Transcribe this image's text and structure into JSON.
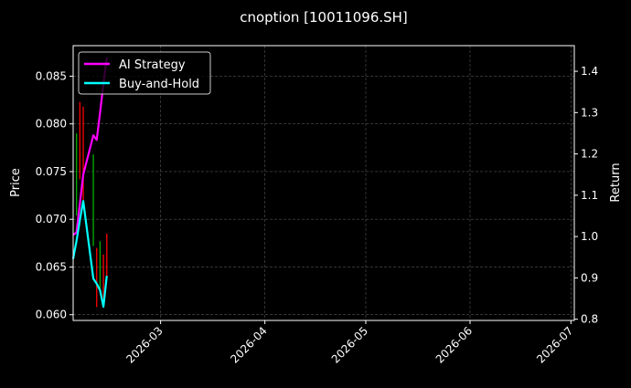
{
  "chart_data": {
    "type": "line",
    "title": "cnoption [10011096.SH]",
    "ylabel_left": "Price",
    "ylabel_right": "Return",
    "xlim": [
      "2026-02-03",
      "2026-07-02"
    ],
    "ylim_left": [
      0.0594,
      0.0882
    ],
    "ylim_right": [
      0.797,
      1.462
    ],
    "x_ticks": [
      "2026-03",
      "2026-04",
      "2026-05",
      "2026-06",
      "2026-07"
    ],
    "x_tick_dates": [
      "2026-03-01",
      "2026-04-01",
      "2026-05-01",
      "2026-06-01",
      "2026-07-01"
    ],
    "y_ticks_left": [
      "0.060",
      "0.065",
      "0.070",
      "0.075",
      "0.080",
      "0.085"
    ],
    "y_ticks_right": [
      "0.8",
      "0.9",
      "1.0",
      "1.1",
      "1.2",
      "1.3",
      "1.4"
    ],
    "grid": true,
    "legend_position": "top-left",
    "colors": {
      "ai": "#ff00ff",
      "bh": "#00ffff",
      "up": "#00b000",
      "down": "#ff0000",
      "grid": "#555555",
      "axes": "#ffffff"
    },
    "dates": [
      "2026-02-03",
      "2026-02-04",
      "2026-02-05",
      "2026-02-06",
      "2026-02-09",
      "2026-02-10",
      "2026-02-11",
      "2026-02-12",
      "2026-02-13"
    ],
    "series": [
      {
        "name": "AI Strategy",
        "axis": "right",
        "values": [
          1.004,
          1.01,
          1.08,
          1.15,
          1.245,
          1.234,
          1.3,
          1.37,
          1.433
        ]
      },
      {
        "name": "Buy-and-Hold",
        "axis": "right",
        "values": [
          0.946,
          0.99,
          1.04,
          1.086,
          0.898,
          0.886,
          0.87,
          0.83,
          0.905
        ]
      }
    ],
    "candles": [
      {
        "date": "2026-02-04",
        "high": 0.079,
        "low": 0.0704,
        "dir": "up"
      },
      {
        "date": "2026-02-05",
        "high": 0.0823,
        "low": 0.0742,
        "dir": "down"
      },
      {
        "date": "2026-02-06",
        "high": 0.0818,
        "low": 0.0717,
        "dir": "down"
      },
      {
        "date": "2026-02-09",
        "high": 0.0768,
        "low": 0.0672,
        "dir": "up"
      },
      {
        "date": "2026-02-10",
        "high": 0.067,
        "low": 0.0608,
        "dir": "down"
      },
      {
        "date": "2026-02-11",
        "high": 0.0677,
        "low": 0.0627,
        "dir": "up"
      },
      {
        "date": "2026-02-12",
        "high": 0.0663,
        "low": 0.0617,
        "dir": "down"
      },
      {
        "date": "2026-02-13",
        "high": 0.0685,
        "low": 0.064,
        "dir": "down"
      }
    ]
  }
}
